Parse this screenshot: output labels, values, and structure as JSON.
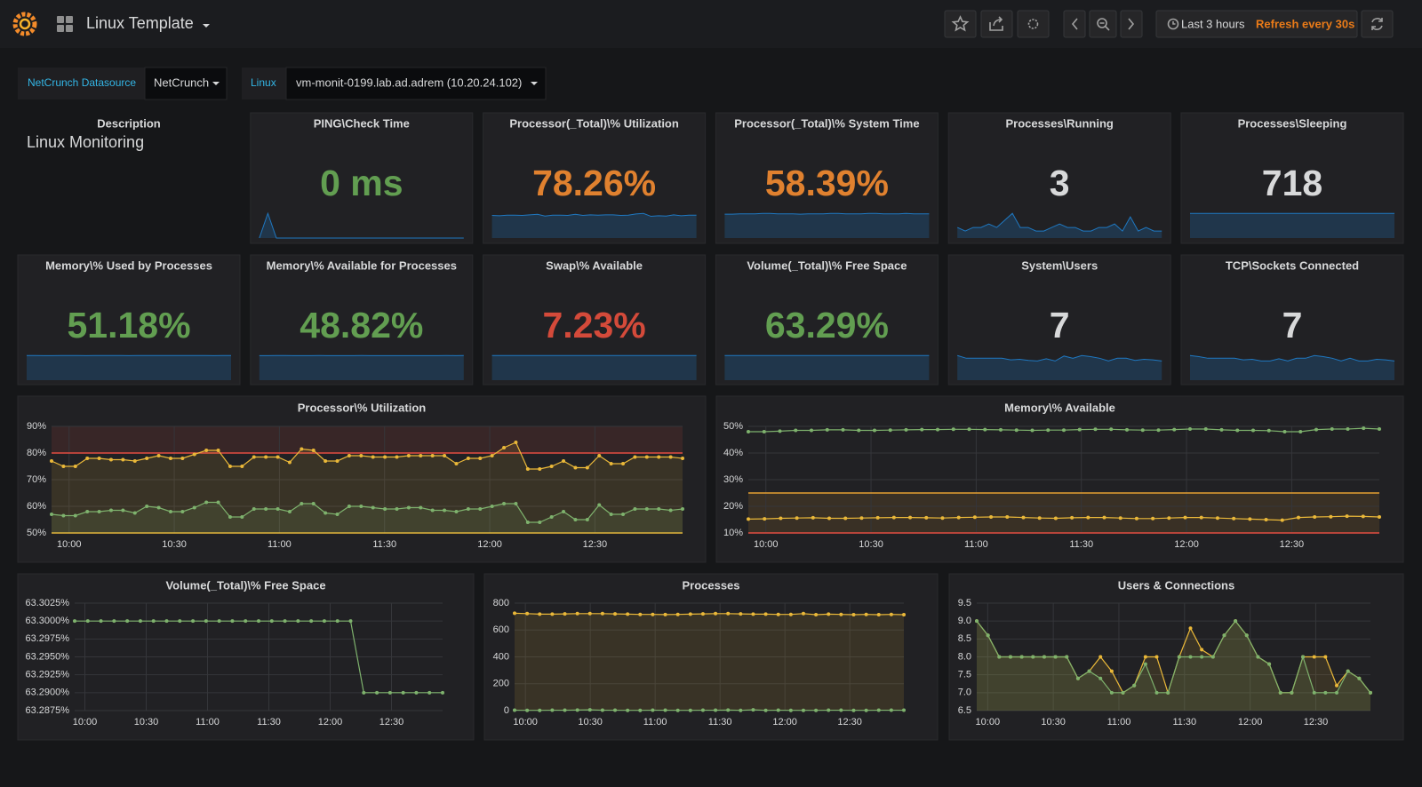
{
  "header": {
    "title": "Linux Template",
    "time_range": "Last 3 hours",
    "refresh": "Refresh every 30s"
  },
  "variables": [
    {
      "label": "NetCrunch Datasource",
      "value": "NetCrunch"
    },
    {
      "label": "Linux",
      "value": "vm-monit-0199.lab.ad.adrem (10.20.24.102)"
    }
  ],
  "text_panel": {
    "title": "Description",
    "content": "Linux Monitoring"
  },
  "stats": [
    {
      "title": "PING\\Check Time",
      "value": "0 ms",
      "color": "#629e51",
      "sparkline": [
        0,
        5,
        0,
        0,
        0,
        0,
        0,
        0,
        0,
        0,
        0,
        0,
        0,
        0,
        0,
        0,
        0,
        0,
        0,
        0,
        0,
        0,
        0,
        0,
        0
      ]
    },
    {
      "title": "Processor(_Total)\\% Utilization",
      "value": "78.26%",
      "color": "#e0812f",
      "sparkline": [
        77,
        76,
        78,
        78,
        77,
        79,
        81,
        75,
        78,
        78,
        77,
        81,
        77,
        79,
        78,
        79,
        79,
        77,
        78,
        82,
        84,
        74,
        76,
        75,
        79,
        76,
        78,
        78
      ]
    },
    {
      "title": "Processor(_Total)\\% System Time",
      "value": "58.39%",
      "color": "#e0812f",
      "sparkline": [
        57,
        57,
        58,
        58,
        58,
        59,
        59,
        58,
        58,
        58,
        57,
        58,
        58,
        58,
        59,
        59,
        58,
        58,
        58,
        59,
        59,
        58,
        58,
        58,
        59,
        58,
        58,
        58
      ]
    },
    {
      "title": "Processes\\Running",
      "value": "3",
      "color": "#d8d9da",
      "sparkline": [
        3,
        2,
        3,
        3,
        4,
        3,
        5,
        7,
        3,
        3,
        2,
        2,
        3,
        4,
        3,
        3,
        2,
        2,
        3,
        3,
        4,
        2,
        6,
        2,
        3,
        2,
        2
      ]
    },
    {
      "title": "Processes\\Sleeping",
      "value": "718",
      "color": "#d8d9da",
      "sparkline": [
        718,
        718,
        718,
        719,
        718,
        718,
        718,
        718,
        718,
        719,
        718,
        718,
        718,
        718,
        718,
        718,
        718,
        718,
        719,
        718,
        718,
        718,
        718,
        718,
        718
      ]
    },
    {
      "title": "Memory\\% Used by Processes",
      "value": "51.18%",
      "color": "#629e51",
      "sparkline": [
        51.2,
        51.2,
        51.1,
        51.1,
        51.2,
        51.2,
        51.2,
        51.1,
        51.2,
        51.2,
        51.2,
        51.2,
        51.1,
        51.2,
        51.2,
        51.2,
        51.2,
        51.2,
        51.3,
        51.2,
        51.2,
        51.2,
        51.1,
        51.2,
        51.2
      ]
    },
    {
      "title": "Memory\\% Available for Processes",
      "value": "48.82%",
      "color": "#629e51",
      "sparkline": [
        48.8,
        48.8,
        48.9,
        48.9,
        48.8,
        48.8,
        48.8,
        48.9,
        48.8,
        48.8,
        48.8,
        48.8,
        48.9,
        48.8,
        48.8,
        48.8,
        48.8,
        48.8,
        48.7,
        48.8,
        48.8,
        48.8,
        48.9,
        48.8,
        49
      ]
    },
    {
      "title": "Swap\\% Available",
      "value": "7.23%",
      "color": "#d44a3a",
      "sparkline": [
        7.23,
        7.23,
        7.23,
        7.23,
        7.23,
        7.23,
        7.23,
        7.23,
        7.23,
        7.23,
        7.23,
        7.23,
        7.23,
        7.23,
        7.23,
        7.23,
        7.23,
        7.23,
        7.23,
        7.23
      ]
    },
    {
      "title": "Volume(_Total)\\% Free Space",
      "value": "63.29%",
      "color": "#629e51",
      "sparkline": [
        63.3,
        63.3,
        63.3,
        63.3,
        63.3,
        63.3,
        63.3,
        63.3,
        63.3,
        63.3,
        63.3,
        63.3,
        63.3,
        63.3,
        63.3,
        63.3,
        63.29,
        63.29,
        63.29,
        63.29
      ]
    },
    {
      "title": "System\\Users",
      "value": "7",
      "color": "#d8d9da",
      "sparkline": [
        9,
        8,
        8,
        8,
        8,
        8,
        7.4,
        7.6,
        7.2,
        7,
        7.8,
        7,
        8.8,
        8,
        9,
        8.6,
        8,
        7,
        8,
        8,
        7.2,
        7.6,
        7.4,
        7
      ]
    },
    {
      "title": "TCP\\Sockets Connected",
      "value": "7",
      "color": "#d8d9da",
      "sparkline": [
        9,
        8.6,
        8,
        8,
        8,
        8,
        7.4,
        7.6,
        7,
        7,
        7.8,
        7,
        8,
        8,
        9,
        8.6,
        8,
        7,
        8,
        7,
        7,
        7.6,
        7.4,
        7
      ]
    }
  ],
  "graphs": [
    {
      "type": "line",
      "title": "Processor\\% Utilization",
      "fill": true,
      "xticks": [
        "10:00",
        "10:30",
        "11:00",
        "11:30",
        "12:00",
        "12:30"
      ],
      "ylim": [
        50,
        90
      ],
      "yticks": [
        {
          "value": 50,
          "label": "50%"
        },
        {
          "value": 60,
          "label": "60%"
        },
        {
          "value": 70,
          "label": "70%"
        },
        {
          "value": 80,
          "label": "80%"
        },
        {
          "value": 90,
          "label": "90%"
        }
      ],
      "thresholds": [
        {
          "value": 80,
          "color": "#e24d42",
          "fill": "above"
        },
        {
          "value": 50,
          "color": "#eab839",
          "fill": "none"
        }
      ],
      "series": [
        {
          "color": "#eab839",
          "values": [
            77,
            75,
            75,
            78,
            78,
            77.5,
            77.5,
            77,
            78,
            79,
            78,
            78,
            79.5,
            81,
            81,
            75,
            75,
            78.5,
            78.5,
            78.5,
            76.5,
            81.5,
            81,
            77,
            77,
            79,
            79,
            78.5,
            78.5,
            78.5,
            79,
            79,
            79,
            79,
            76,
            78,
            78,
            79,
            82,
            84,
            74,
            74,
            75,
            77,
            74.5,
            74.5,
            79,
            76,
            76,
            78.5,
            78.5,
            78.5,
            78.5,
            78
          ]
        },
        {
          "color": "#7eb26d",
          "values": [
            57,
            56.5,
            56.5,
            58,
            58,
            58.5,
            58.5,
            57.5,
            60,
            59.5,
            58,
            58,
            59.5,
            61.5,
            61.5,
            56,
            56,
            59,
            59,
            59,
            58,
            61,
            61,
            57.5,
            57,
            60,
            60,
            59.5,
            59,
            59,
            59.5,
            59.5,
            58.5,
            58.5,
            58,
            59,
            59,
            60,
            61,
            61,
            54,
            54,
            56,
            58,
            55,
            55,
            60.5,
            57,
            57,
            59,
            59,
            59,
            58.5,
            59
          ]
        }
      ]
    },
    {
      "type": "line",
      "title": "Memory\\% Available",
      "fill": false,
      "xticks": [
        "10:00",
        "10:30",
        "11:00",
        "11:30",
        "12:00",
        "12:30"
      ],
      "ylim": [
        10,
        50
      ],
      "yticks": [
        {
          "value": 10,
          "label": "10%"
        },
        {
          "value": 20,
          "label": "20%"
        },
        {
          "value": 30,
          "label": "30%"
        },
        {
          "value": 40,
          "label": "40%"
        },
        {
          "value": 50,
          "label": "50%"
        }
      ],
      "thresholds": [
        {
          "value": 25,
          "color": "#e5a032",
          "fill": "below"
        },
        {
          "value": 10,
          "color": "#e24d42",
          "fill": "none"
        }
      ],
      "series": [
        {
          "color": "#7eb26d",
          "values": [
            48,
            48,
            48.2,
            48.5,
            48.5,
            48.7,
            48.7,
            48.5,
            48.5,
            48.6,
            48.7,
            48.8,
            48.8,
            48.9,
            48.9,
            48.8,
            48.7,
            48.6,
            48.5,
            48.6,
            48.6,
            48.8,
            48.9,
            48.9,
            48.7,
            48.6,
            48.6,
            48.8,
            49,
            49,
            48.7,
            48.5,
            48.5,
            48.4,
            48,
            48,
            48.8,
            49,
            49,
            49.3,
            49
          ]
        },
        {
          "color": "#eab839",
          "values": [
            15.2,
            15.3,
            15.5,
            15.6,
            15.7,
            15.5,
            15.5,
            15.6,
            15.7,
            15.8,
            15.8,
            15.7,
            15.6,
            15.8,
            15.9,
            16,
            16,
            15.8,
            15.6,
            15.5,
            15.7,
            15.8,
            15.8,
            15.6,
            15.4,
            15.4,
            15.6,
            15.8,
            15.8,
            15.6,
            15.4,
            15.2,
            15,
            14.8,
            15.8,
            16,
            16.1,
            16.3,
            16.2,
            16
          ]
        }
      ]
    },
    {
      "type": "line",
      "title": "Volume(_Total)\\% Free Space",
      "fill": false,
      "xticks": [
        "10:00",
        "10:30",
        "11:00",
        "11:30",
        "12:00",
        "12:30"
      ],
      "ylim": [
        63.2875,
        63.3025
      ],
      "yticks": [
        {
          "value": 63.2875,
          "label": "63.2875%"
        },
        {
          "value": 63.29,
          "label": "63.2900%"
        },
        {
          "value": 63.2925,
          "label": "63.2925%"
        },
        {
          "value": 63.295,
          "label": "63.2950%"
        },
        {
          "value": 63.2975,
          "label": "63.2975%"
        },
        {
          "value": 63.3,
          "label": "63.3000%"
        },
        {
          "value": 63.3025,
          "label": "63.3025%"
        }
      ],
      "thresholds": [],
      "series": [
        {
          "color": "#7eb26d",
          "values": [
            63.3,
            63.3,
            63.3,
            63.3,
            63.3,
            63.3,
            63.3,
            63.3,
            63.3,
            63.3,
            63.3,
            63.3,
            63.3,
            63.3,
            63.3,
            63.3,
            63.3,
            63.3,
            63.3,
            63.3,
            63.3,
            63.3,
            63.29,
            63.29,
            63.29,
            63.29,
            63.29,
            63.29,
            63.29
          ]
        }
      ]
    },
    {
      "type": "line",
      "title": "Processes",
      "fill": true,
      "xticks": [
        "10:00",
        "10:30",
        "11:00",
        "11:30",
        "12:00",
        "12:30"
      ],
      "ylim": [
        0,
        800
      ],
      "yticks": [
        0,
        200,
        400,
        600,
        800
      ],
      "thresholds": [],
      "series": [
        {
          "color": "#eab839",
          "values": [
            725,
            722,
            718,
            718,
            720,
            722,
            722,
            722,
            720,
            718,
            716,
            716,
            715,
            716,
            718,
            720,
            722,
            722,
            720,
            718,
            718,
            716,
            716,
            722,
            714,
            718,
            716,
            714,
            716,
            714,
            716,
            714
          ]
        },
        {
          "color": "#7eb26d",
          "values": [
            3,
            2,
            2,
            3,
            3,
            4,
            6,
            3,
            3,
            2,
            2,
            3,
            3,
            2,
            2,
            3,
            3,
            4,
            2,
            6,
            2,
            3,
            2,
            2,
            2,
            3,
            3,
            2,
            2,
            3,
            3,
            3
          ]
        }
      ]
    },
    {
      "type": "line",
      "title": "Users & Connections",
      "fill": true,
      "xticks": [
        "10:00",
        "10:30",
        "11:00",
        "11:30",
        "12:00",
        "12:30"
      ],
      "ylim": [
        6.5,
        9.5
      ],
      "yticks": [
        6.5,
        {
          "value": 7,
          "label": "7.0"
        },
        7.5,
        {
          "value": 8,
          "label": "8.0"
        },
        8.5,
        {
          "value": 9,
          "label": "9.0"
        },
        9.5
      ],
      "thresholds": [],
      "series": [
        {
          "color": "#eab839",
          "values": [
            9,
            8.6,
            8,
            8,
            8,
            8,
            8,
            8,
            8,
            7.4,
            7.6,
            8,
            7.6,
            7,
            7.2,
            8,
            8,
            7,
            8,
            8.8,
            8.2,
            8,
            8.6,
            9,
            8.6,
            8,
            7.8,
            7,
            7,
            8,
            8,
            8,
            7.2,
            7.6,
            7.4,
            7
          ]
        },
        {
          "color": "#7eb26d",
          "values": [
            9,
            8.6,
            8,
            8,
            8,
            8,
            8,
            8,
            8,
            7.4,
            7.6,
            7.4,
            7,
            7,
            7.2,
            7.8,
            7,
            7,
            8,
            8,
            8,
            8,
            8.6,
            9,
            8.6,
            8,
            7.8,
            7,
            7,
            8,
            7,
            7,
            7,
            7.6,
            7.4,
            7
          ]
        }
      ]
    }
  ]
}
